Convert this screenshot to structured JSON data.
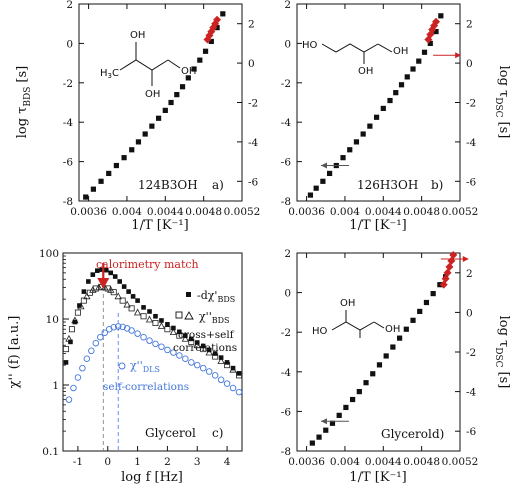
{
  "colors": {
    "bds": "#111111",
    "dsc": "#cc2222",
    "dls": "#4477dd",
    "line": "#111111"
  },
  "shared": {
    "left_y_prefix": "log τ",
    "left_y_sub": "BDS",
    "right_y_prefix": "log τ",
    "right_y_sub": "DSC",
    "y_unit": "[s]",
    "xlabel_T": "1/T [K⁻¹]"
  },
  "chart_data": [
    {
      "id": "a",
      "type": "scatter",
      "panel_label": "a)",
      "sample_name": "124B3OH",
      "xlim": [
        0.0035,
        0.0052
      ],
      "ylim": [
        -8,
        2
      ],
      "right_ylim": [
        -7,
        3
      ],
      "x_ticks": [
        "0.0036",
        "0.004",
        "0.0044",
        "0.0048",
        "0.0052"
      ],
      "x_tick_values": [
        0.0036,
        0.004,
        0.0044,
        0.0048,
        0.0052
      ],
      "y_ticks": [
        -8,
        -6,
        -4,
        -2,
        0,
        2
      ],
      "right_y_ticks": [
        -6,
        -4,
        -2,
        0,
        2
      ],
      "bds": {
        "x": [
          0.00357,
          0.00365,
          0.00373,
          0.00381,
          0.00389,
          0.00397,
          0.00405,
          0.00412,
          0.00419,
          0.00426,
          0.00433,
          0.0044,
          0.00446,
          0.00452,
          0.00458,
          0.00464,
          0.0047,
          0.00476,
          0.00482,
          0.00488,
          0.00494,
          0.005
        ],
        "y": [
          -7.8,
          -7.4,
          -7.0,
          -6.6,
          -6.2,
          -5.8,
          -5.4,
          -5.0,
          -4.6,
          -4.2,
          -3.8,
          -3.4,
          -3.0,
          -2.6,
          -2.2,
          -1.75,
          -1.3,
          -0.85,
          -0.4,
          0.1,
          0.8,
          1.5
        ]
      },
      "dsc": {
        "x": [
          0.00484,
          0.00486,
          0.00488,
          0.0049,
          0.00492,
          0.00494
        ],
        "y": [
          0.2,
          0.4,
          0.6,
          0.8,
          1.0,
          1.2
        ]
      }
    },
    {
      "id": "b",
      "type": "scatter",
      "panel_label": "b)",
      "sample_name": "126H3OH",
      "xlim": [
        0.0035,
        0.0052
      ],
      "ylim": [
        -8,
        2
      ],
      "right_ylim": [
        -7,
        3
      ],
      "x_ticks": [
        "0.0036",
        "0.004",
        "0.0044",
        "0.0048",
        "0.0052"
      ],
      "x_tick_values": [
        0.0036,
        0.004,
        0.0044,
        0.0048,
        0.0052
      ],
      "y_ticks": [
        -8,
        -6,
        -4,
        -2,
        0,
        2
      ],
      "right_y_ticks": [
        -6,
        -4,
        -2,
        0,
        2
      ],
      "bds": {
        "x": [
          0.00364,
          0.0037,
          0.00377,
          0.00384,
          0.00391,
          0.00398,
          0.00405,
          0.00412,
          0.00419,
          0.00426,
          0.00433,
          0.0044,
          0.00447,
          0.00453,
          0.00459,
          0.00465,
          0.00471,
          0.00477,
          0.00483,
          0.00489,
          0.00495,
          0.005
        ],
        "y": [
          -7.7,
          -7.35,
          -7.0,
          -6.6,
          -6.2,
          -5.8,
          -5.4,
          -5.0,
          -4.6,
          -4.2,
          -3.75,
          -3.3,
          -2.9,
          -2.5,
          -2.1,
          -1.7,
          -1.3,
          -0.9,
          -0.45,
          0.0,
          0.6,
          1.4
        ]
      },
      "dsc": {
        "x": [
          0.00487,
          0.00489,
          0.00491,
          0.00493,
          0.00495
        ],
        "y": [
          0.2,
          0.45,
          0.7,
          0.9,
          1.1
        ]
      },
      "arrow_left": {
        "x": 0.00375,
        "y": -6.2
      },
      "arrow_right": {
        "x": 0.00492,
        "y": -0.6
      }
    },
    {
      "id": "c",
      "type": "scatter",
      "panel_label": "c)",
      "sample_name": "Glycerol",
      "xlim": [
        -1.5,
        4.5
      ],
      "ylim_log": [
        0.1,
        100
      ],
      "xlabel": "log f [Hz]",
      "x_ticks": [
        -1,
        0,
        1,
        2,
        3,
        4
      ],
      "y_ticks": [
        "0.1",
        "1",
        "10",
        "100"
      ],
      "y_tick_values": [
        0.1,
        1,
        10,
        100
      ],
      "ylabel_prefix": "χ''",
      "ylabel_suffix": "(f) [a.u.]",
      "annotation": "calorimetry match",
      "legend": {
        "dchi_prefix": "-dχ'",
        "dchi_sub": "BDS",
        "chi_bds_prefix": "χ''",
        "chi_bds_sub": "BDS",
        "cross_1": "cross+self",
        "cross_2": "correlations",
        "chi_dls_prefix": "χ''",
        "chi_dls_sub": "DLS",
        "self_label": "self-correlations"
      },
      "peak_bds_x": -0.15,
      "peak_dls_x": 0.35,
      "dchi": {
        "x": [
          -1.4,
          -1.25,
          -1.1,
          -0.95,
          -0.8,
          -0.65,
          -0.5,
          -0.35,
          -0.2,
          -0.05,
          0.1,
          0.25,
          0.4,
          0.55,
          0.7,
          0.85,
          1.0,
          1.2,
          1.4,
          1.6,
          1.8,
          2.0,
          2.2,
          2.4,
          2.6,
          2.8,
          3.0,
          3.2,
          3.4,
          3.6,
          3.8,
          4.0,
          4.2,
          4.4
        ],
        "y": [
          2.2,
          4.5,
          9,
          16,
          26,
          37,
          47,
          54,
          56,
          55,
          50,
          44,
          37,
          31,
          26,
          22,
          19,
          15,
          13,
          11,
          9.5,
          8.3,
          7.3,
          6.4,
          5.6,
          5.0,
          4.4,
          3.9,
          3.4,
          3.0,
          2.6,
          2.2,
          1.8,
          1.5
        ]
      },
      "chi_bds": {
        "x": [
          -1.4,
          -1.3,
          -1.2,
          -1.1,
          -1.0,
          -0.9,
          -0.8,
          -0.7,
          -0.6,
          -0.5,
          -0.4,
          -0.3,
          -0.2,
          -0.1,
          0.0,
          0.1,
          0.2,
          0.35,
          0.5,
          0.65,
          0.8,
          1.0,
          1.2,
          1.4,
          1.6,
          1.8,
          2.0,
          2.2,
          2.4,
          2.6,
          2.8,
          3.0,
          3.2,
          3.4,
          3.6,
          3.8,
          4.0,
          4.2,
          4.4
        ],
        "y": [
          3.5,
          5,
          7,
          9.5,
          12.5,
          15.5,
          19,
          22,
          25,
          27.5,
          29,
          30,
          30.5,
          30,
          29,
          27.5,
          25.5,
          22,
          19,
          16.5,
          14.5,
          12.5,
          11,
          9.8,
          8.7,
          7.8,
          7,
          6.3,
          5.6,
          5,
          4.5,
          4,
          3.5,
          3.1,
          2.7,
          2.3,
          2,
          1.7,
          1.4
        ]
      },
      "chi_dls": {
        "x": [
          -1.3,
          -1.15,
          -1.0,
          -0.85,
          -0.7,
          -0.55,
          -0.4,
          -0.25,
          -0.1,
          0.05,
          0.2,
          0.35,
          0.5,
          0.65,
          0.8,
          1.0,
          1.2,
          1.4,
          1.6,
          1.8,
          2.0,
          2.2,
          2.4,
          2.6,
          2.8,
          3.0,
          3.2,
          3.4,
          3.6,
          3.8,
          4.0,
          4.2,
          4.4
        ],
        "y": [
          0.6,
          0.9,
          1.3,
          1.8,
          2.5,
          3.3,
          4.3,
          5.3,
          6.2,
          7.0,
          7.5,
          7.7,
          7.6,
          7.2,
          6.7,
          6.0,
          5.3,
          4.7,
          4.2,
          3.8,
          3.4,
          3.1,
          2.8,
          2.5,
          2.2,
          2.0,
          1.8,
          1.6,
          1.4,
          1.2,
          1.05,
          0.9,
          0.78
        ]
      }
    },
    {
      "id": "d",
      "type": "scatter",
      "panel_label": "d)",
      "sample_name": "Glycerol",
      "xlim": [
        0.0035,
        0.0052
      ],
      "ylim": [
        -8,
        2
      ],
      "right_ylim": [
        -7,
        3
      ],
      "x_ticks": [
        "0.0036",
        "0.004",
        "0.0044",
        "0.0048",
        "0.0052"
      ],
      "x_tick_values": [
        0.0036,
        0.004,
        0.0044,
        0.0048,
        0.0052
      ],
      "y_ticks": [
        -8,
        -6,
        -4,
        -2,
        0,
        2
      ],
      "right_y_ticks": [
        -6,
        -4,
        -2,
        0,
        2
      ],
      "bds": {
        "x": [
          0.00366,
          0.00373,
          0.0038,
          0.00387,
          0.00394,
          0.00401,
          0.00408,
          0.00415,
          0.00422,
          0.00429,
          0.00436,
          0.00443,
          0.0045,
          0.00457,
          0.00464,
          0.00471,
          0.00478,
          0.00485,
          0.00492,
          0.00499,
          0.00505
        ],
        "y": [
          -7.6,
          -7.3,
          -6.95,
          -6.6,
          -6.2,
          -5.8,
          -5.4,
          -5.0,
          -4.55,
          -4.1,
          -3.65,
          -3.2,
          -2.75,
          -2.3,
          -1.85,
          -1.4,
          -0.95,
          -0.5,
          -0.05,
          0.4,
          0.8
        ]
      },
      "dsc": {
        "x": [
          0.00503,
          0.00505,
          0.00507,
          0.00509,
          0.00511,
          0.00513
        ],
        "y": [
          0.4,
          0.7,
          1.0,
          1.3,
          1.6,
          1.9
        ]
      },
      "arrow_left": {
        "x": 0.00375,
        "y": -6.5
      },
      "arrow_right": {
        "x": 0.005,
        "y": 1.7
      }
    }
  ]
}
